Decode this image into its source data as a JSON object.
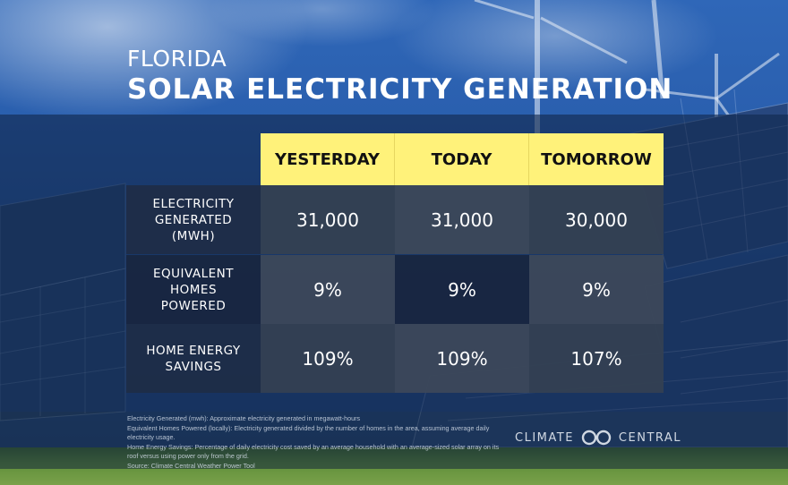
{
  "header": {
    "subtitle": "FLORIDA",
    "title": "SOLAR ELECTRICITY GENERATION"
  },
  "table": {
    "columns": [
      "YESTERDAY",
      "TODAY",
      "TOMORROW"
    ],
    "rows": [
      {
        "label": "ELECTRICITY GENERATED (MWH)",
        "values": [
          "31,000",
          "31,000",
          "30,000"
        ]
      },
      {
        "label": "EQUIVALENT HOMES POWERED",
        "values": [
          "9%",
          "9%",
          "9%"
        ]
      },
      {
        "label": "HOME ENERGY SAVINGS",
        "values": [
          "109%",
          "109%",
          "107%"
        ]
      }
    ]
  },
  "footnotes": [
    "Electricity Generated (mwh): Approximate electricity generated in megawatt-hours",
    "Equivalent Homes Powered (locally): Electricity generated divided by the number of homes in the area, assuming average daily electricity usage.",
    "Home Energy Savings: Percentage of daily electricity cost saved by an average household with an average-sized solar array on its roof versus using power only from the grid.",
    "Source: Climate Central Weather Power Tool"
  ],
  "logo": {
    "left_text": "CLIMATE",
    "right_text": "CENTRAL",
    "icon": "linked-circles-icon"
  },
  "colors": {
    "header_yellow": "#fff27a",
    "sky_blue": "#2a5fae",
    "panel_dark": "#1e2c46"
  }
}
